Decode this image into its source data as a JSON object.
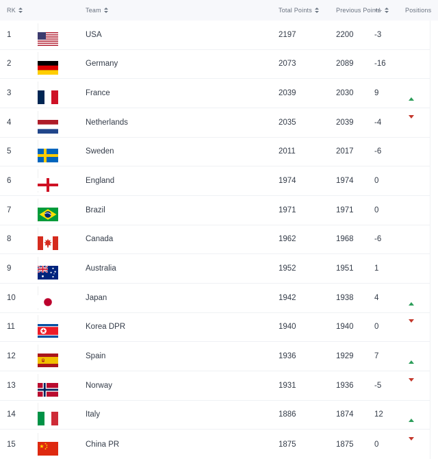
{
  "header": {
    "columns": [
      {
        "label": "RK",
        "sortable": true
      },
      {
        "label": "Team",
        "sortable": true
      },
      {
        "label": "Total Points",
        "sortable": true
      },
      {
        "label": "Previous Points",
        "sortable": false
      },
      {
        "label": "+/-",
        "sortable": true
      },
      {
        "label": "Positions",
        "sortable": false
      }
    ]
  },
  "colors": {
    "movement_up_green": "#2E9E5B",
    "movement_down_red": "#C4382C",
    "header_background": "#F7F8FB",
    "row_text": "#333B48"
  },
  "table": {
    "rows": [
      {
        "rank": "1",
        "team": "USA",
        "flag": "usa",
        "total": "2197",
        "previous": "2200",
        "change": "-3",
        "movement": "none"
      },
      {
        "rank": "2",
        "team": "Germany",
        "flag": "germany",
        "total": "2073",
        "previous": "2089",
        "change": "-16",
        "movement": "none"
      },
      {
        "rank": "3",
        "team": "France",
        "flag": "france",
        "total": "2039",
        "previous": "2030",
        "change": "9",
        "movement": "up"
      },
      {
        "rank": "4",
        "team": "Netherlands",
        "flag": "netherlands",
        "total": "2035",
        "previous": "2039",
        "change": "-4",
        "movement": "down"
      },
      {
        "rank": "5",
        "team": "Sweden",
        "flag": "sweden",
        "total": "2011",
        "previous": "2017",
        "change": "-6",
        "movement": "none"
      },
      {
        "rank": "6",
        "team": "England",
        "flag": "england",
        "total": "1974",
        "previous": "1974",
        "change": "0",
        "movement": "none"
      },
      {
        "rank": "7",
        "team": "Brazil",
        "flag": "brazil",
        "total": "1971",
        "previous": "1971",
        "change": "0",
        "movement": "none"
      },
      {
        "rank": "8",
        "team": "Canada",
        "flag": "canada",
        "total": "1962",
        "previous": "1968",
        "change": "-6",
        "movement": "none"
      },
      {
        "rank": "9",
        "team": "Australia",
        "flag": "australia",
        "total": "1952",
        "previous": "1951",
        "change": "1",
        "movement": "none"
      },
      {
        "rank": "10",
        "team": "Japan",
        "flag": "japan",
        "total": "1942",
        "previous": "1938",
        "change": "4",
        "movement": "up"
      },
      {
        "rank": "11",
        "team": "Korea DPR",
        "flag": "korea-dpr",
        "total": "1940",
        "previous": "1940",
        "change": "0",
        "movement": "down"
      },
      {
        "rank": "12",
        "team": "Spain",
        "flag": "spain",
        "total": "1936",
        "previous": "1929",
        "change": "7",
        "movement": "up"
      },
      {
        "rank": "13",
        "team": "Norway",
        "flag": "norway",
        "total": "1931",
        "previous": "1936",
        "change": "-5",
        "movement": "down"
      },
      {
        "rank": "14",
        "team": "Italy",
        "flag": "italy",
        "total": "1886",
        "previous": "1874",
        "change": "12",
        "movement": "up"
      },
      {
        "rank": "15",
        "team": "China PR",
        "flag": "china-pr",
        "total": "1875",
        "previous": "1875",
        "change": "0",
        "movement": "down"
      }
    ]
  }
}
